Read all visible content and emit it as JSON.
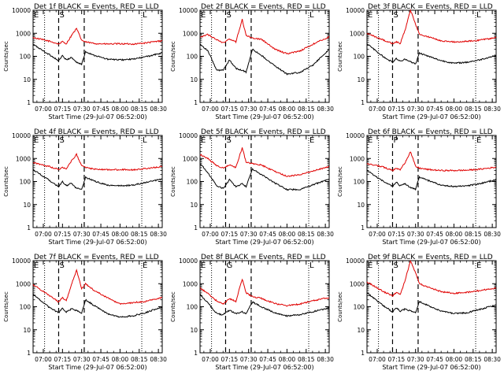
{
  "chart_data": [
    {
      "type": "line",
      "title": "Det 1f BLACK = Events, RED = LLD",
      "xlabel": "Start Time (29-Jul-07 06:52:00)",
      "ylabel": "Counts/sec",
      "yscale": "log",
      "ylim": [
        1,
        10000
      ],
      "xlim": [
        "06:52",
        "08:33"
      ],
      "x_ticks": [
        "07:00",
        "07:15",
        "07:30",
        "07:45",
        "08:00",
        "08:15",
        "08:30"
      ],
      "y_ticks": [
        "1",
        "10",
        "100",
        "1000",
        "10000"
      ],
      "markers": [
        "E",
        "S",
        "L"
      ],
      "marker_times": [
        "06:52",
        "07:12",
        "08:17"
      ],
      "dotted_lines": [
        "07:01",
        "08:17"
      ],
      "dashed_lines": [
        "07:12",
        "07:32"
      ],
      "series": [
        {
          "color": "#e00000",
          "x": [
            "06:52",
            "07:05",
            "07:12",
            "07:15",
            "07:18",
            "07:22",
            "07:26",
            "07:30",
            "07:33",
            "07:40",
            "07:50",
            "08:00",
            "08:10",
            "08:20",
            "08:33"
          ],
          "values": [
            650,
            450,
            340,
            430,
            350,
            800,
            1600,
            500,
            420,
            360,
            340,
            350,
            340,
            380,
            480
          ]
        },
        {
          "color": "#000000",
          "x": [
            "06:52",
            "07:05",
            "07:12",
            "07:15",
            "07:18",
            "07:22",
            "07:26",
            "07:30",
            "07:33",
            "07:40",
            "07:50",
            "08:00",
            "08:10",
            "08:20",
            "08:33"
          ],
          "values": [
            330,
            115,
            65,
            105,
            70,
            90,
            55,
            45,
            160,
            110,
            75,
            70,
            75,
            95,
            140
          ]
        }
      ]
    },
    {
      "type": "line",
      "title": "Det 2f BLACK = Events, RED = LLD",
      "xlabel": "Start Time (29-Jul-07 06:52:00)",
      "ylabel": "Counts/sec",
      "yscale": "log",
      "ylim": [
        1,
        10000
      ],
      "xlim": [
        "06:52",
        "08:33"
      ],
      "x_ticks": [
        "07:00",
        "07:15",
        "07:30",
        "07:45",
        "08:00",
        "08:15",
        "08:30"
      ],
      "y_ticks": [
        "1",
        "10",
        "100",
        "1000",
        "10000"
      ],
      "markers": [
        "E",
        "S",
        "L"
      ],
      "marker_times": [
        "06:52",
        "07:12",
        "08:17"
      ],
      "dotted_lines": [
        "07:01",
        "08:17"
      ],
      "dashed_lines": [
        "07:12",
        "07:32"
      ],
      "series": [
        {
          "color": "#e00000",
          "x": [
            "06:52",
            "06:58",
            "07:05",
            "07:10",
            "07:15",
            "07:20",
            "07:25",
            "07:28",
            "07:33",
            "07:40",
            "07:50",
            "08:00",
            "08:10",
            "08:20",
            "08:33"
          ],
          "values": [
            650,
            900,
            520,
            380,
            560,
            420,
            4000,
            800,
            620,
            550,
            210,
            130,
            170,
            330,
            700
          ]
        },
        {
          "color": "#000000",
          "x": [
            "06:52",
            "06:58",
            "07:05",
            "07:10",
            "07:15",
            "07:20",
            "07:25",
            "07:28",
            "07:33",
            "07:40",
            "07:50",
            "08:00",
            "08:10",
            "08:20",
            "08:33"
          ],
          "values": [
            330,
            180,
            25,
            25,
            70,
            30,
            25,
            20,
            200,
            110,
            40,
            17,
            20,
            40,
            200
          ]
        }
      ]
    },
    {
      "type": "line",
      "title": "Det 3f BLACK = Events, RED = LLD",
      "xlabel": "Start Time (29-Jul-07 06:52:00)",
      "ylabel": "Counts/sec",
      "yscale": "log",
      "ylim": [
        1,
        10000
      ],
      "xlim": [
        "06:52",
        "08:33"
      ],
      "x_ticks": [
        "07:00",
        "07:15",
        "07:30",
        "07:45",
        "08:00",
        "08:15",
        "08:30"
      ],
      "y_ticks": [
        "1",
        "10",
        "100",
        "1000",
        "10000"
      ],
      "markers": [
        "E",
        "S",
        "L"
      ],
      "marker_times": [
        "06:52",
        "07:12",
        "08:17"
      ],
      "dotted_lines": [
        "07:01",
        "08:17"
      ],
      "dashed_lines": [
        "07:12",
        "07:32"
      ],
      "series": [
        {
          "color": "#e00000",
          "x": [
            "06:52",
            "07:05",
            "07:12",
            "07:15",
            "07:18",
            "07:22",
            "07:26",
            "07:30",
            "07:33",
            "07:40",
            "07:50",
            "08:00",
            "08:10",
            "08:20",
            "08:33"
          ],
          "values": [
            1000,
            500,
            350,
            420,
            360,
            1500,
            10000,
            2500,
            900,
            700,
            480,
            420,
            450,
            500,
            650
          ]
        },
        {
          "color": "#000000",
          "x": [
            "06:52",
            "07:05",
            "07:12",
            "07:15",
            "07:18",
            "07:22",
            "07:26",
            "07:30",
            "07:33",
            "07:40",
            "07:50",
            "08:00",
            "08:10",
            "08:20",
            "08:33"
          ],
          "values": [
            350,
            95,
            55,
            80,
            60,
            75,
            60,
            45,
            140,
            100,
            65,
            50,
            55,
            70,
            110
          ]
        }
      ]
    },
    {
      "type": "line",
      "title": "Det 4f BLACK = Events, RED = LLD",
      "xlabel": "Start Time (29-Jul-07 06:52:00)",
      "ylabel": "Counts/sec",
      "yscale": "log",
      "ylim": [
        1,
        10000
      ],
      "xlim": [
        "06:52",
        "08:33"
      ],
      "x_ticks": [
        "07:00",
        "07:15",
        "07:30",
        "07:45",
        "08:00",
        "08:15",
        "08:30"
      ],
      "y_ticks": [
        "1",
        "10",
        "100",
        "1000",
        "10000"
      ],
      "markers": [
        "E",
        "S",
        "L"
      ],
      "marker_times": [
        "06:52",
        "07:12",
        "08:17"
      ],
      "dotted_lines": [
        "07:01",
        "08:17"
      ],
      "dashed_lines": [
        "07:12",
        "07:32"
      ],
      "series": [
        {
          "color": "#e00000",
          "x": [
            "06:52",
            "07:05",
            "07:12",
            "07:15",
            "07:18",
            "07:22",
            "07:26",
            "07:30",
            "07:33",
            "07:40",
            "07:50",
            "08:00",
            "08:10",
            "08:20",
            "08:33"
          ],
          "values": [
            650,
            440,
            330,
            420,
            340,
            800,
            1500,
            480,
            400,
            350,
            320,
            330,
            320,
            360,
            450
          ]
        },
        {
          "color": "#000000",
          "x": [
            "06:52",
            "07:05",
            "07:12",
            "07:15",
            "07:18",
            "07:22",
            "07:26",
            "07:30",
            "07:33",
            "07:40",
            "07:50",
            "08:00",
            "08:10",
            "08:20",
            "08:33"
          ],
          "values": [
            330,
            110,
            60,
            100,
            65,
            85,
            50,
            45,
            150,
            105,
            70,
            65,
            70,
            90,
            130
          ]
        }
      ]
    },
    {
      "type": "line",
      "title": "Det 5f BLACK = Events, RED = LLD",
      "xlabel": "Start Time (29-Jul-07 06:52:00)",
      "ylabel": "Counts/sec",
      "yscale": "log",
      "ylim": [
        1,
        10000
      ],
      "xlim": [
        "06:52",
        "08:33"
      ],
      "x_ticks": [
        "07:00",
        "07:15",
        "07:30",
        "07:45",
        "08:00",
        "08:15",
        "08:30"
      ],
      "y_ticks": [
        "1",
        "10",
        "100",
        "1000",
        "10000"
      ],
      "markers": [
        "E",
        "S",
        "E"
      ],
      "marker_times": [
        "06:52",
        "07:12",
        "08:17"
      ],
      "dotted_lines": [
        "07:01",
        "08:17"
      ],
      "dashed_lines": [
        "07:12",
        "07:32"
      ],
      "series": [
        {
          "color": "#e00000",
          "x": [
            "06:52",
            "06:58",
            "07:05",
            "07:10",
            "07:15",
            "07:20",
            "07:25",
            "07:28",
            "07:33",
            "07:40",
            "07:50",
            "08:00",
            "08:10",
            "08:20",
            "08:33"
          ],
          "values": [
            1500,
            1000,
            500,
            380,
            520,
            400,
            3000,
            700,
            600,
            520,
            280,
            170,
            200,
            280,
            450
          ]
        },
        {
          "color": "#000000",
          "x": [
            "06:52",
            "06:58",
            "07:05",
            "07:10",
            "07:15",
            "07:20",
            "07:25",
            "07:28",
            "07:33",
            "07:40",
            "07:50",
            "08:00",
            "08:10",
            "08:20",
            "08:33"
          ],
          "values": [
            600,
            250,
            65,
            50,
            120,
            60,
            80,
            60,
            350,
            200,
            90,
            45,
            45,
            70,
            130
          ]
        }
      ]
    },
    {
      "type": "line",
      "title": "Det 6f BLACK = Events, RED = LLD",
      "xlabel": "Start Time (29-Jul-07 06:52:00)",
      "ylabel": "Counts/sec",
      "yscale": "log",
      "ylim": [
        1,
        10000
      ],
      "xlim": [
        "06:52",
        "08:33"
      ],
      "x_ticks": [
        "07:00",
        "07:15",
        "07:30",
        "07:45",
        "08:00",
        "08:15",
        "08:30"
      ],
      "y_ticks": [
        "1",
        "10",
        "100",
        "1000",
        "10000"
      ],
      "markers": [
        "E",
        "P",
        "E"
      ],
      "marker_times": [
        "06:52",
        "07:12",
        "08:17"
      ],
      "dotted_lines": [
        "07:01",
        "08:17"
      ],
      "dashed_lines": [
        "07:12",
        "07:32"
      ],
      "series": [
        {
          "color": "#e00000",
          "x": [
            "06:52",
            "07:05",
            "07:12",
            "07:15",
            "07:18",
            "07:22",
            "07:26",
            "07:30",
            "07:33",
            "07:40",
            "07:50",
            "08:00",
            "08:10",
            "08:20",
            "08:33"
          ],
          "values": [
            600,
            420,
            300,
            380,
            320,
            700,
            2000,
            450,
            380,
            330,
            300,
            300,
            310,
            340,
            420
          ]
        },
        {
          "color": "#000000",
          "x": [
            "06:52",
            "07:05",
            "07:12",
            "07:15",
            "07:18",
            "07:22",
            "07:26",
            "07:30",
            "07:33",
            "07:40",
            "07:50",
            "08:00",
            "08:10",
            "08:20",
            "08:33"
          ],
          "values": [
            300,
            100,
            60,
            95,
            65,
            80,
            55,
            45,
            160,
            110,
            70,
            60,
            65,
            80,
            120
          ]
        }
      ]
    },
    {
      "type": "line",
      "title": "Det 7f BLACK = Events, RED = LLD",
      "xlabel": "Start Time (29-Jul-07 06:52:00)",
      "ylabel": "Counts/sec",
      "yscale": "log",
      "ylim": [
        1,
        10000
      ],
      "xlim": [
        "06:52",
        "08:33"
      ],
      "x_ticks": [
        "07:00",
        "07:15",
        "07:30",
        "07:45",
        "08:00",
        "08:15",
        "08:30"
      ],
      "y_ticks": [
        "1",
        "10",
        "100",
        "1000",
        "10000"
      ],
      "markers": [
        "E",
        "S",
        "E"
      ],
      "marker_times": [
        "06:52",
        "07:12",
        "08:17"
      ],
      "dotted_lines": [
        "07:01",
        "08:17"
      ],
      "dashed_lines": [
        "07:12",
        "07:32"
      ],
      "series": [
        {
          "color": "#e00000",
          "x": [
            "06:52",
            "07:05",
            "07:12",
            "07:15",
            "07:18",
            "07:22",
            "07:26",
            "07:30",
            "07:33",
            "07:40",
            "07:50",
            "08:00",
            "08:10",
            "08:20",
            "08:33"
          ],
          "values": [
            900,
            300,
            160,
            250,
            180,
            900,
            4000,
            600,
            1000,
            500,
            250,
            130,
            150,
            170,
            250
          ]
        },
        {
          "color": "#000000",
          "x": [
            "06:52",
            "07:05",
            "07:12",
            "07:15",
            "07:18",
            "07:22",
            "07:26",
            "07:30",
            "07:33",
            "07:40",
            "07:50",
            "08:00",
            "08:10",
            "08:20",
            "08:33"
          ],
          "values": [
            350,
            90,
            55,
            85,
            60,
            80,
            70,
            55,
            200,
            110,
            50,
            35,
            40,
            55,
            100
          ]
        }
      ]
    },
    {
      "type": "line",
      "title": "Det 8f BLACK = Events, RED = LLD",
      "xlabel": "Start Time (29-Jul-07 06:52:00)",
      "ylabel": "Counts/sec",
      "yscale": "log",
      "ylim": [
        1,
        10000
      ],
      "xlim": [
        "06:52",
        "08:33"
      ],
      "x_ticks": [
        "07:00",
        "07:15",
        "07:30",
        "07:45",
        "08:00",
        "08:15",
        "08:30"
      ],
      "y_ticks": [
        "1",
        "10",
        "100",
        "1000",
        "10000"
      ],
      "markers": [
        "E",
        "G",
        "L"
      ],
      "marker_times": [
        "06:52",
        "07:12",
        "08:17"
      ],
      "dotted_lines": [
        "07:01",
        "08:17"
      ],
      "dashed_lines": [
        "07:12",
        "07:32"
      ],
      "series": [
        {
          "color": "#e00000",
          "x": [
            "06:52",
            "06:58",
            "07:05",
            "07:10",
            "07:15",
            "07:20",
            "07:25",
            "07:28",
            "07:33",
            "07:40",
            "07:50",
            "08:00",
            "08:10",
            "08:20",
            "08:33"
          ],
          "values": [
            650,
            380,
            180,
            130,
            220,
            170,
            1600,
            400,
            280,
            230,
            140,
            110,
            130,
            180,
            250
          ]
        },
        {
          "color": "#000000",
          "x": [
            "06:52",
            "06:58",
            "07:05",
            "07:10",
            "07:15",
            "07:20",
            "07:25",
            "07:28",
            "07:33",
            "07:40",
            "07:50",
            "08:00",
            "08:10",
            "08:20",
            "08:33"
          ],
          "values": [
            350,
            150,
            50,
            45,
            70,
            50,
            60,
            50,
            160,
            100,
            55,
            40,
            45,
            60,
            90
          ]
        }
      ]
    },
    {
      "type": "line",
      "title": "Det 9f BLACK = Events, RED = LLD",
      "xlabel": "Start Time (29-Jul-07 06:52:00)",
      "ylabel": "Counts/sec",
      "yscale": "log",
      "ylim": [
        1,
        10000
      ],
      "xlim": [
        "06:52",
        "08:33"
      ],
      "x_ticks": [
        "07:00",
        "07:15",
        "07:30",
        "07:45",
        "08:00",
        "08:15",
        "08:30"
      ],
      "y_ticks": [
        "1",
        "10",
        "100",
        "1000",
        "10000"
      ],
      "markers": [
        "E",
        "S",
        "E"
      ],
      "marker_times": [
        "06:52",
        "07:12",
        "08:17"
      ],
      "dotted_lines": [
        "07:01",
        "08:17"
      ],
      "dashed_lines": [
        "07:12",
        "07:32"
      ],
      "series": [
        {
          "color": "#e00000",
          "x": [
            "06:52",
            "07:05",
            "07:12",
            "07:15",
            "07:18",
            "07:22",
            "07:26",
            "07:30",
            "07:33",
            "07:40",
            "07:50",
            "08:00",
            "08:10",
            "08:20",
            "08:33"
          ],
          "values": [
            1200,
            450,
            300,
            420,
            330,
            1500,
            10000,
            3000,
            1000,
            700,
            450,
            380,
            420,
            500,
            650
          ]
        },
        {
          "color": "#000000",
          "x": [
            "06:52",
            "07:05",
            "07:12",
            "07:15",
            "07:18",
            "07:22",
            "07:26",
            "07:30",
            "07:33",
            "07:40",
            "07:50",
            "08:00",
            "08:10",
            "08:20",
            "08:33"
          ],
          "values": [
            400,
            110,
            60,
            90,
            65,
            80,
            65,
            55,
            170,
            110,
            65,
            50,
            55,
            75,
            120
          ]
        }
      ]
    }
  ]
}
